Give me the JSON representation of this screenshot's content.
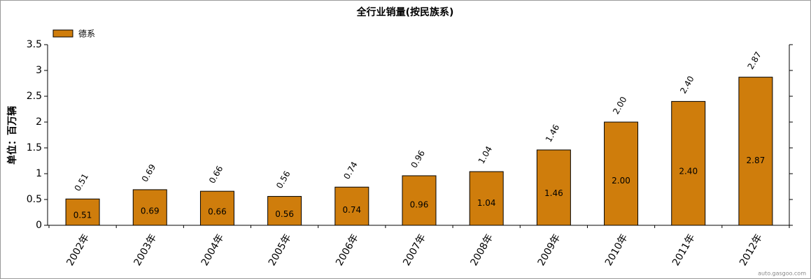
{
  "chart_data": {
    "type": "bar",
    "title": "全行业销量(按民族系)",
    "y_label": "单位：百万辆",
    "categories": [
      "2002年",
      "2003年",
      "2004年",
      "2005年",
      "2006年",
      "2007年",
      "2008年",
      "2009年",
      "2010年",
      "2011年",
      "2012年"
    ],
    "series": [
      {
        "name": "德系",
        "color": "#cf7d0c",
        "values": [
          0.51,
          0.69,
          0.66,
          0.56,
          0.74,
          0.96,
          1.04,
          1.46,
          2.0,
          2.4,
          2.87
        ],
        "value_labels": [
          "0.51",
          "0.69",
          "0.66",
          "0.56",
          "0.74",
          "0.96",
          "1.04",
          "1.46",
          "2.00",
          "2.40",
          "2.87"
        ]
      }
    ],
    "ylim": [
      0,
      3.5
    ],
    "yticks": [
      0,
      0.5,
      1,
      1.5,
      2,
      2.5,
      3,
      3.5
    ],
    "legend": "top-left",
    "grid": false,
    "watermark": "auto.gasgoo.com"
  }
}
